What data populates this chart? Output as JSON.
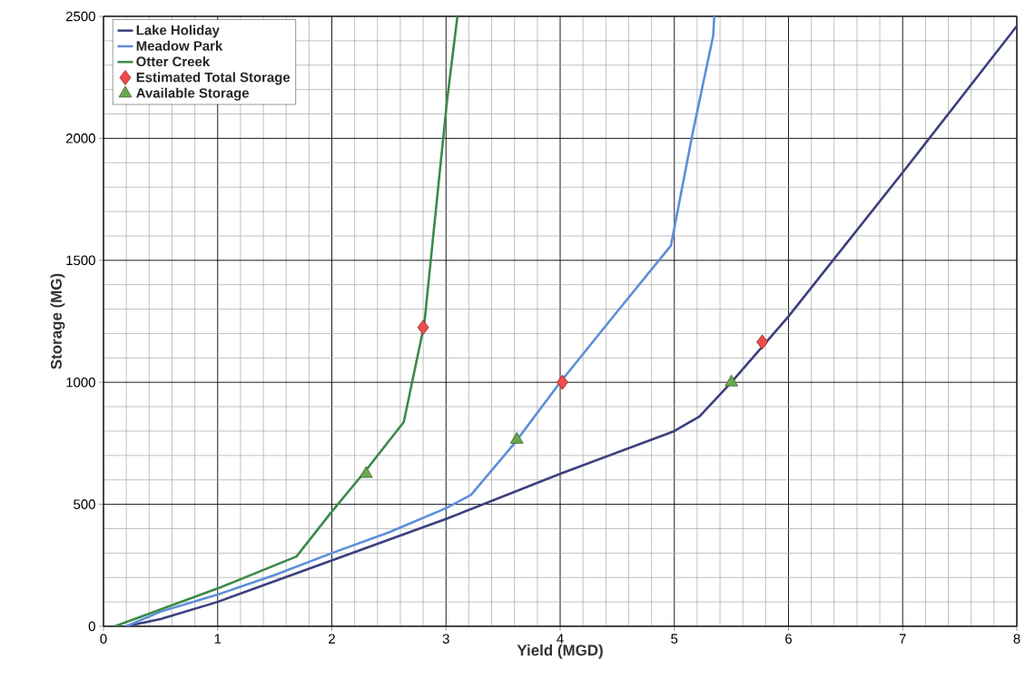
{
  "chart_data": {
    "type": "line",
    "xlabel": "Yield (MGD)",
    "ylabel": "Storage (MG)",
    "xlim": [
      0,
      8
    ],
    "ylim": [
      0,
      2500
    ],
    "xticks": [
      0,
      {
        "value": 0.2,
        "label": null
      },
      {
        "value": 0.4,
        "label": null
      },
      {
        "value": 0.6,
        "label": null
      },
      {
        "value": 0.8,
        "label": null
      },
      1,
      {
        "value": 1.2,
        "label": null
      },
      {
        "value": 1.4,
        "label": null
      },
      {
        "value": 1.6,
        "label": null
      },
      {
        "value": 1.8,
        "label": null
      },
      2,
      {
        "value": 2.2,
        "label": null
      },
      {
        "value": 2.4,
        "label": null
      },
      {
        "value": 2.6,
        "label": null
      },
      {
        "value": 2.8,
        "label": null
      },
      3,
      {
        "value": 3.2,
        "label": null
      },
      {
        "value": 3.4,
        "label": null
      },
      {
        "value": 3.6,
        "label": null
      },
      {
        "value": 3.8,
        "label": null
      },
      4,
      {
        "value": 4.2,
        "label": null
      },
      {
        "value": 4.4,
        "label": null
      },
      {
        "value": 4.6,
        "label": null
      },
      {
        "value": 4.8,
        "label": null
      },
      5,
      {
        "value": 5.2,
        "label": null
      },
      {
        "value": 5.4,
        "label": null
      },
      {
        "value": 5.6,
        "label": null
      },
      {
        "value": 5.8,
        "label": null
      },
      6,
      {
        "value": 6.2,
        "label": null
      },
      {
        "value": 6.4,
        "label": null
      },
      {
        "value": 6.6,
        "label": null
      },
      {
        "value": 6.8,
        "label": null
      },
      7,
      {
        "value": 7.2,
        "label": null
      },
      {
        "value": 7.4,
        "label": null
      },
      {
        "value": 7.6,
        "label": null
      },
      {
        "value": 7.8,
        "label": null
      },
      8
    ],
    "yticks": [
      0,
      {
        "value": 100,
        "label": null
      },
      {
        "value": 200,
        "label": null
      },
      {
        "value": 300,
        "label": null
      },
      {
        "value": 400,
        "label": null
      },
      500,
      {
        "value": 600,
        "label": null
      },
      {
        "value": 700,
        "label": null
      },
      {
        "value": 800,
        "label": null
      },
      {
        "value": 900,
        "label": null
      },
      1000,
      {
        "value": 1100,
        "label": null
      },
      {
        "value": 1200,
        "label": null
      },
      {
        "value": 1300,
        "label": null
      },
      {
        "value": 1400,
        "label": null
      },
      1500,
      {
        "value": 1600,
        "label": null
      },
      {
        "value": 1700,
        "label": null
      },
      {
        "value": 1800,
        "label": null
      },
      {
        "value": 1900,
        "label": null
      },
      2000,
      {
        "value": 2100,
        "label": null
      },
      {
        "value": 2200,
        "label": null
      },
      {
        "value": 2300,
        "label": null
      },
      {
        "value": 2400,
        "label": null
      },
      2500
    ],
    "grid": true,
    "legend": "top left",
    "series": [
      {
        "name": "Lake Holiday",
        "color": "#3b3f7f",
        "x": [
          0.2,
          0.5,
          1,
          1.5,
          2,
          3,
          4,
          5,
          5.22,
          5.5,
          6,
          7,
          8
        ],
        "values": [
          0,
          30,
          100,
          185,
          270,
          440,
          625,
          800,
          860,
          1000,
          1270,
          1860,
          2460
        ]
      },
      {
        "name": "Meadow Park",
        "color": "#5b8fd8",
        "x": [
          0.2,
          0.5,
          1,
          1.5,
          2,
          2.5,
          3,
          3.22,
          3.6,
          4,
          4.5,
          4.97,
          5.16,
          5.34,
          5.35
        ],
        "values": [
          0,
          60,
          130,
          210,
          300,
          385,
          484,
          539,
          750,
          1000,
          1290,
          1560,
          2020,
          2420,
          2500
        ]
      },
      {
        "name": "Otter Creek",
        "color": "#3a8a48",
        "x": [
          0.1,
          1,
          1.69,
          2,
          2.3,
          2.63,
          2.81,
          2.91,
          3.01,
          3.1
        ],
        "values": [
          0,
          155,
          286,
          470,
          640,
          837,
          1239,
          1700,
          2158,
          2500
        ]
      },
      {
        "name": "Estimated Total Storage",
        "type": "scatter",
        "marker": "diamond",
        "color": "#f04a4a",
        "x": [
          2.8,
          4.02,
          5.77
        ],
        "values": [
          1225,
          1000,
          1165
        ]
      },
      {
        "name": "Available Storage",
        "type": "scatter",
        "marker": "triangle",
        "color": "#6aa84f",
        "x": [
          2.3,
          3.62,
          5.5
        ],
        "values": [
          625,
          765,
          1000
        ]
      }
    ]
  }
}
